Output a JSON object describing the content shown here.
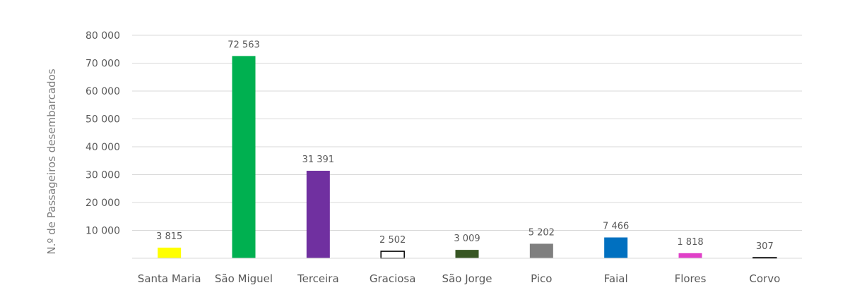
{
  "chart_data": {
    "type": "bar",
    "title": "",
    "xlabel": "",
    "ylabel": "N.º de Passageiros desembarcados",
    "ylim": [
      0,
      80000
    ],
    "yticks": [
      10000,
      20000,
      30000,
      40000,
      50000,
      60000,
      70000,
      80000
    ],
    "ytick_labels": [
      "10 000",
      "20 000",
      "30 000",
      "40 000",
      "50 000",
      "60 000",
      "70 000",
      "80 000"
    ],
    "grid": true,
    "legend": "none",
    "categories": [
      "Santa Maria",
      "São Miguel",
      "Terceira",
      "Graciosa",
      "São Jorge",
      "Pico",
      "Faial",
      "Flores",
      "Corvo"
    ],
    "values": [
      3815,
      72563,
      31391,
      2502,
      3009,
      5202,
      7466,
      1818,
      307
    ],
    "value_labels": [
      "3 815",
      "72 563",
      "31 391",
      "2 502",
      "3 009",
      "5 202",
      "7 466",
      "1 818",
      "307"
    ],
    "colors": [
      "#ffff00",
      "#00b050",
      "#7030a0",
      "#ffffff",
      "#375623",
      "#7f7f7f",
      "#0070c0",
      "#e040c8",
      "#ffffff"
    ],
    "outlined": [
      false,
      false,
      false,
      true,
      false,
      false,
      false,
      false,
      true
    ],
    "gridline_color": "#d9d9d9"
  }
}
